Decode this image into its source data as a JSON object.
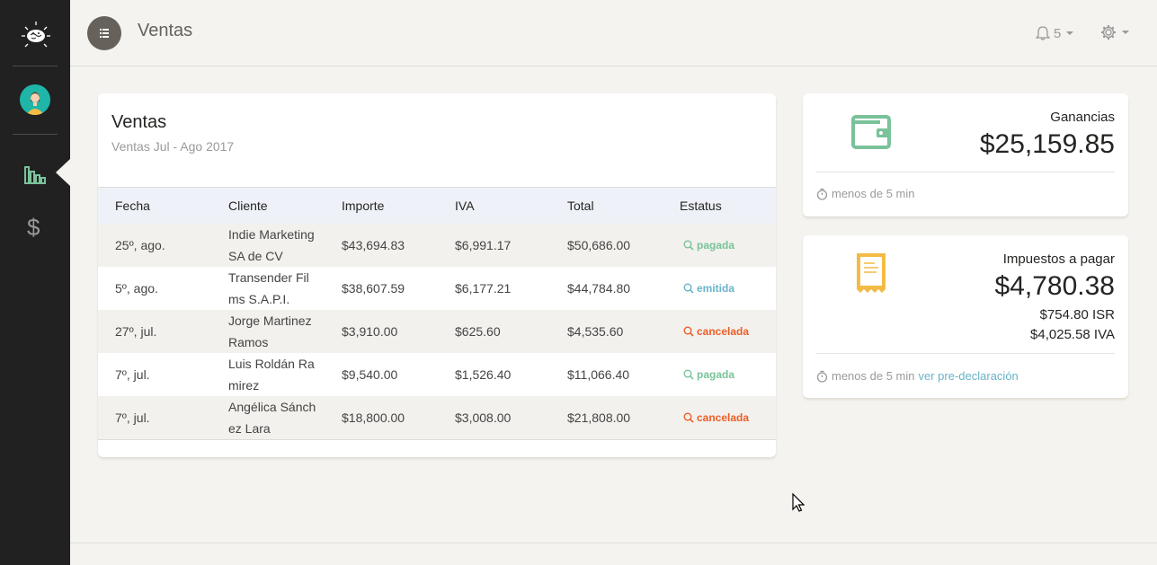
{
  "app": {
    "page_title": "Ventas"
  },
  "topbar": {
    "notifications_count": "5"
  },
  "sales_card": {
    "title": "Ventas",
    "subtitle": "Ventas Jul - Ago 2017",
    "columns": [
      "Fecha",
      "Cliente",
      "Importe",
      "IVA",
      "Total",
      "Estatus"
    ],
    "rows": [
      {
        "fecha": "25º, ago.",
        "cliente": "Indie Marketing SA de CV",
        "importe": "$43,694.83",
        "iva": "$6,991.17",
        "total": "$50,686.00",
        "estatus": "pagada",
        "status_color": "#7ac29a"
      },
      {
        "fecha": "5º, ago.",
        "cliente": "Transender Films S.A.P.I.",
        "importe": "$38,607.59",
        "iva": "$6,177.21",
        "total": "$44,784.80",
        "estatus": "emitida",
        "status_color": "#68b3c8"
      },
      {
        "fecha": "27º, jul.",
        "cliente": "Jorge Martinez Ramos",
        "importe": "$3,910.00",
        "iva": "$625.60",
        "total": "$4,535.60",
        "estatus": "cancelada",
        "status_color": "#eb5e28"
      },
      {
        "fecha": "7º, jul.",
        "cliente": "Luis Roldán Ramirez",
        "importe": "$9,540.00",
        "iva": "$1,526.40",
        "total": "$11,066.40",
        "estatus": "pagada",
        "status_color": "#7ac29a"
      },
      {
        "fecha": "7º, jul.",
        "cliente": "Angélica Sánchez Lara",
        "importe": "$18,800.00",
        "iva": "$3,008.00",
        "total": "$21,808.00",
        "estatus": "cancelada",
        "status_color": "#eb5e28"
      }
    ]
  },
  "earnings_card": {
    "label": "Ganancias",
    "value": "$25,159.85",
    "footer": "menos de 5 min",
    "icon": "wallet-icon",
    "icon_color": "#7ac29a"
  },
  "taxes_card": {
    "label": "Impuestos a pagar",
    "value": "$4,780.38",
    "isr": "$754.80 ISR",
    "iva": "$4,025.58 IVA",
    "footer": "menos de 5 min",
    "link": "ver pre-declaración",
    "icon": "receipt-icon",
    "icon_color": "#f3bb45"
  }
}
